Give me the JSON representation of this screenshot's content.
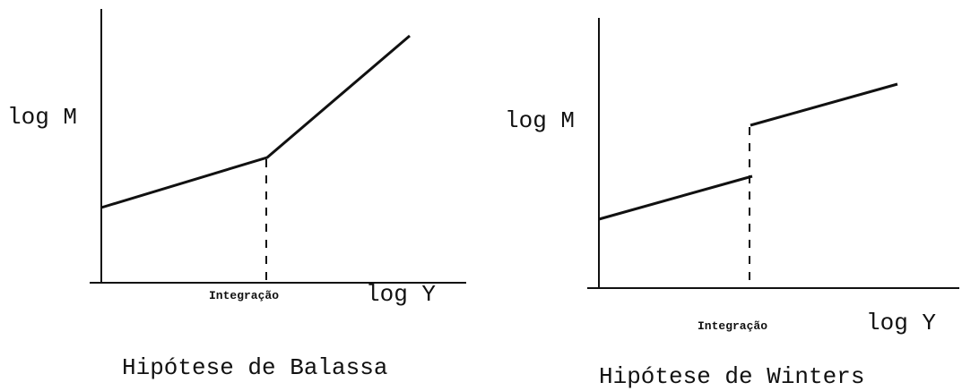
{
  "panels": [
    {
      "y_label": "log M",
      "x_label": "log Y",
      "marker_label": "Integração",
      "caption": "Hipótese de Balassa"
    },
    {
      "y_label": "log M",
      "x_label": "log Y",
      "marker_label": "Integração",
      "caption": "Hipótese de Winters"
    }
  ]
}
